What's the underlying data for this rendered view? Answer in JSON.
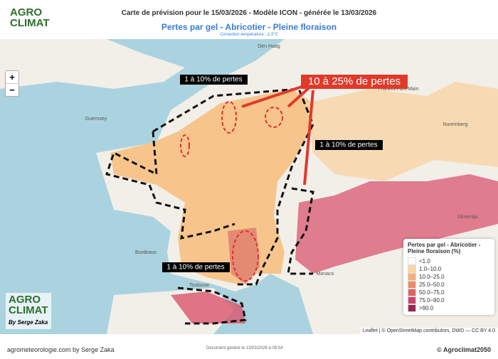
{
  "header": {
    "logo_top": "AGRO",
    "logo_bottom": "CLIMAT",
    "title": "Carte de prévision pour le 15/03/2026 - Modèle ICON - générée le 13/03/2026",
    "subtitle": "Pertes par gel - Abricotier - Pleine floraison",
    "note": "Correction température: -1.5°C"
  },
  "map": {
    "zoom_in": "+",
    "zoom_out": "−",
    "places": [
      "Den Haag",
      "Frankfurt am Main",
      "Nuremberg",
      "Guernsey",
      "Bordeaux",
      "Toulouse",
      "Monaco",
      "Slovenija"
    ],
    "annotations": [
      "1 à 10% de pertes",
      "1 à 10% de pertes",
      "1 à 10% de pertes",
      "10 à 25% de pertes"
    ],
    "logo_top": "AGRO",
    "logo_bottom": "CLIMAT",
    "logo_byline": "By Serge Zaka",
    "attribution": "Leaflet | © OpenStreetMap contributors, DWD — CC BY 4.0"
  },
  "legend": {
    "title": "Pertes par gel - Abricotier - Pleine floraison (%)",
    "items": [
      {
        "label": "<1.0",
        "color": "#ffffff"
      },
      {
        "label": "1.0–10.0",
        "color": "#fbd3a0"
      },
      {
        "label": "10.0–25.0",
        "color": "#f6ad78"
      },
      {
        "label": "25.0–50.0",
        "color": "#ee8a6b"
      },
      {
        "label": "50.0–75.0",
        "color": "#e06262"
      },
      {
        "label": "75.0–90.0",
        "color": "#c8456a"
      },
      {
        "label": ">90.0",
        "color": "#9e2450"
      }
    ]
  },
  "footer": {
    "left": "agrometeorologie.com by Serge Zaka",
    "center": "Document généré le 13/03/2026 à 08:54",
    "right": "© Agroclimat2050"
  }
}
